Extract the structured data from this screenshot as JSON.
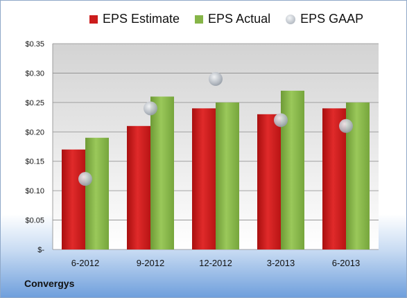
{
  "company": "Convergys",
  "chart_data": {
    "type": "bar",
    "categories": [
      "6-2012",
      "9-2012",
      "12-2012",
      "3-2013",
      "6-2013"
    ],
    "series": [
      {
        "name": "EPS Estimate",
        "kind": "bar",
        "color": "#cc1c1c",
        "values": [
          0.17,
          0.21,
          0.24,
          0.23,
          0.24
        ]
      },
      {
        "name": "EPS Actual",
        "kind": "bar",
        "color": "#86b548",
        "values": [
          0.19,
          0.26,
          0.25,
          0.27,
          0.25
        ]
      },
      {
        "name": "EPS GAAP",
        "kind": "marker",
        "color": "#b8bec6",
        "values": [
          0.12,
          0.24,
          0.29,
          0.22,
          0.21
        ]
      }
    ],
    "ylim": [
      0,
      0.35
    ],
    "yticks": [
      0,
      0.05,
      0.1,
      0.15,
      0.2,
      0.25,
      0.3,
      0.35
    ],
    "ytick_labels": [
      "$-",
      "$0.05",
      "$0.10",
      "$0.15",
      "$0.20",
      "$0.25",
      "$0.30",
      "$0.35"
    ],
    "legend_position": "top",
    "grid": true
  }
}
